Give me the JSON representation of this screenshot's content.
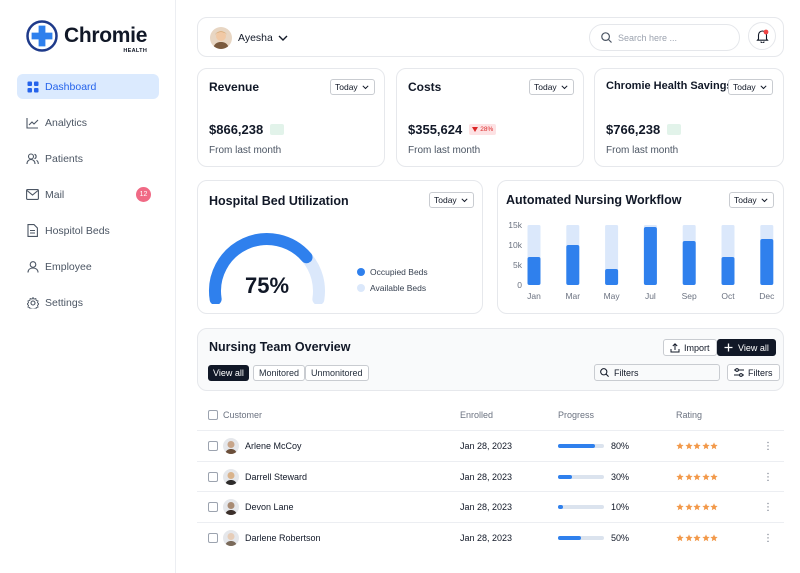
{
  "brand": {
    "name": "Chromie",
    "sub": "HEALTH"
  },
  "sidebar": {
    "items": [
      {
        "label": "Dashboard",
        "icon": "grid-icon",
        "active": true
      },
      {
        "label": "Analytics",
        "icon": "trend-icon"
      },
      {
        "label": "Patients",
        "icon": "users-icon"
      },
      {
        "label": "Mail",
        "icon": "mail-icon",
        "badge": "12"
      },
      {
        "label": "Hospitol Beds",
        "icon": "document-icon"
      },
      {
        "label": "Employee",
        "icon": "user-icon"
      },
      {
        "label": "Settings",
        "icon": "gear-icon"
      }
    ]
  },
  "header": {
    "user_name": "Ayesha",
    "search_placeholder": "Search here ...",
    "notification_dot_color": "#ef4444"
  },
  "stats": [
    {
      "title": "Revenue",
      "period": "Today",
      "value": "$866,238",
      "subtitle": "From last month",
      "change": ""
    },
    {
      "title": "Costs",
      "period": "Today",
      "value": "$355,624",
      "subtitle": "From last month",
      "change": "28%"
    },
    {
      "title": "Chromie Health Savings",
      "period": "Today",
      "value": "$766,238",
      "subtitle": "From last month",
      "change": ""
    }
  ],
  "bed_utilization": {
    "title": "Hospital Bed Utilization",
    "period": "Today",
    "value_label": "75%",
    "occupied_fraction": 0.75,
    "legend": [
      "Occupied Beds",
      "Available Beds"
    ]
  },
  "workflow": {
    "title": "Automated Nursing Workflow",
    "period": "Today"
  },
  "chart_data": {
    "type": "bar",
    "categories": [
      "Jan",
      "Mar",
      "May",
      "Jul",
      "Sep",
      "Oct",
      "Dec"
    ],
    "series": [
      {
        "values": [
          7,
          10,
          4,
          14.5,
          11,
          7,
          11.5
        ]
      }
    ],
    "capacity": 15,
    "yticks": [
      "0",
      "5k",
      "10k",
      "15k"
    ],
    "ylim": [
      0,
      15
    ],
    "units": "k",
    "grid": false
  },
  "team": {
    "title": "Nursing Team Overview",
    "import_label": "Import",
    "view_all_label": "View all",
    "tabs": [
      "View all",
      "Monitored",
      "Unmonitored"
    ],
    "filter_placeholder": "Filters",
    "filters_label": "Filters",
    "columns": [
      "Customer",
      "Enrolled",
      "Progress",
      "Rating"
    ],
    "rows": [
      {
        "name": "Arlene McCoy",
        "enrolled": "Jan 28, 2023",
        "progress": 80,
        "progress_label": "80%",
        "rating": 5
      },
      {
        "name": "Darrell Steward",
        "enrolled": "Jan 28, 2023",
        "progress": 30,
        "progress_label": "30%",
        "rating": 5
      },
      {
        "name": "Devon Lane",
        "enrolled": "Jan 28, 2023",
        "progress": 10,
        "progress_label": "10%",
        "rating": 5
      },
      {
        "name": "Darlene Robertson",
        "enrolled": "Jan 28, 2023",
        "progress": 50,
        "progress_label": "50%",
        "rating": 5
      }
    ]
  },
  "colors": {
    "accent": "#2f80ed",
    "accent_light": "#dbeafe",
    "star": "#f2994a",
    "dark": "#111827"
  }
}
